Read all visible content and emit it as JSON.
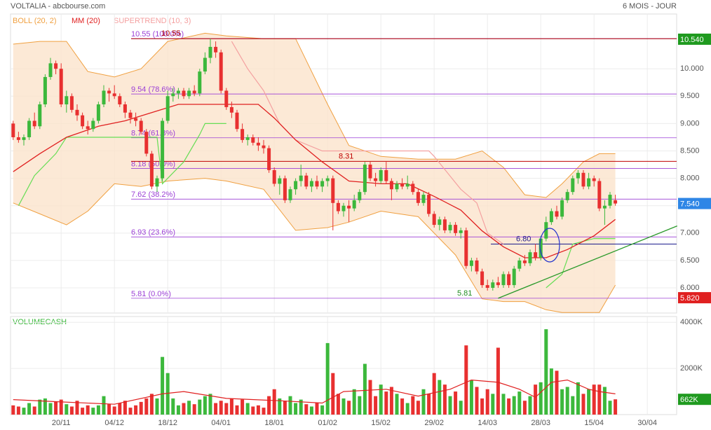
{
  "chart_data": [
    {
      "type": "candlestick",
      "title": "VOLTALIA - abcbourse.com",
      "subtitle": "6 MOIS - JOUR",
      "xlim": [
        -0.5,
        124.5
      ],
      "xticks": [
        {
          "value": 9,
          "label": "20/11"
        },
        {
          "value": 19,
          "label": "04/12"
        },
        {
          "value": 29,
          "label": "18/12"
        },
        {
          "value": 39,
          "label": "04/01"
        },
        {
          "value": 49,
          "label": "18/01"
        },
        {
          "value": 59,
          "label": "01/02"
        },
        {
          "value": 69,
          "label": "15/02"
        },
        {
          "value": 79,
          "label": "29/02"
        },
        {
          "value": 89,
          "label": "14/03"
        },
        {
          "value": 99,
          "label": "28/03"
        },
        {
          "value": 109,
          "label": "15/04"
        },
        {
          "value": 119,
          "label": "30/04"
        }
      ],
      "ylim": [
        5.54,
        11.0
      ],
      "yticks": [
        {
          "value": 6,
          "label": "6.000"
        },
        {
          "value": 6.5,
          "label": "6.500"
        },
        {
          "value": 7,
          "label": "7.000"
        },
        {
          "value": 7.5,
          "label": "7.500"
        },
        {
          "value": 8,
          "label": "8.000"
        },
        {
          "value": 8.5,
          "label": "8.500"
        },
        {
          "value": 9,
          "label": "9.000"
        },
        {
          "value": 9.5,
          "label": "9.500"
        },
        {
          "value": 10,
          "label": "10.000"
        }
      ],
      "grid": true,
      "up_color": "#3cb83c",
      "down_color": "#e83030",
      "candles": [
        [
          9.0,
          9.05,
          8.7,
          8.75
        ],
        [
          8.75,
          8.85,
          8.65,
          8.7
        ],
        [
          8.7,
          8.8,
          8.6,
          8.75
        ],
        [
          8.75,
          9.1,
          8.7,
          9.05
        ],
        [
          9.05,
          9.2,
          8.9,
          8.95
        ],
        [
          8.95,
          9.4,
          8.9,
          9.35
        ],
        [
          9.35,
          9.9,
          9.3,
          9.85
        ],
        [
          9.85,
          10.2,
          9.8,
          10.1
        ],
        [
          10.1,
          10.15,
          9.9,
          10.0
        ],
        [
          10.0,
          10.1,
          9.3,
          9.35
        ],
        [
          9.35,
          9.6,
          9.2,
          9.5
        ],
        [
          9.5,
          9.55,
          9.2,
          9.25
        ],
        [
          9.25,
          9.35,
          9.05,
          9.15
        ],
        [
          9.15,
          9.2,
          8.9,
          8.95
        ],
        [
          8.95,
          9.05,
          8.8,
          8.9
        ],
        [
          8.9,
          9.1,
          8.85,
          9.05
        ],
        [
          9.05,
          9.4,
          9.0,
          9.35
        ],
        [
          9.35,
          9.7,
          9.3,
          9.6
        ],
        [
          9.6,
          9.65,
          9.4,
          9.55
        ],
        [
          9.55,
          9.7,
          9.45,
          9.5
        ],
        [
          9.5,
          9.55,
          9.3,
          9.35
        ],
        [
          9.35,
          9.4,
          9.1,
          9.2
        ],
        [
          9.2,
          9.25,
          9.0,
          9.1
        ],
        [
          9.1,
          9.2,
          8.95,
          9.05
        ],
        [
          9.05,
          9.1,
          8.8,
          8.85
        ],
        [
          8.85,
          8.9,
          8.4,
          8.45
        ],
        [
          8.45,
          8.5,
          7.8,
          7.85
        ],
        [
          7.85,
          8.05,
          7.75,
          8.0
        ],
        [
          8.0,
          9.1,
          7.95,
          9.05
        ],
        [
          9.05,
          9.6,
          9.0,
          9.5
        ],
        [
          9.5,
          9.65,
          9.4,
          9.55
        ],
        [
          9.55,
          9.65,
          9.45,
          9.6
        ],
        [
          9.6,
          9.65,
          9.45,
          9.5
        ],
        [
          9.5,
          9.65,
          9.45,
          9.6
        ],
        [
          9.6,
          9.7,
          9.5,
          9.55
        ],
        [
          9.55,
          10.0,
          9.5,
          9.95
        ],
        [
          9.95,
          10.3,
          9.9,
          10.2
        ],
        [
          10.2,
          10.55,
          10.1,
          10.4
        ],
        [
          10.4,
          10.5,
          10.2,
          10.3
        ],
        [
          10.3,
          10.35,
          9.55,
          9.6
        ],
        [
          9.6,
          9.65,
          9.25,
          9.3
        ],
        [
          9.3,
          9.4,
          9.1,
          9.2
        ],
        [
          9.2,
          9.25,
          8.85,
          8.9
        ],
        [
          8.9,
          9.0,
          8.65,
          8.7
        ],
        [
          8.7,
          8.8,
          8.6,
          8.75
        ],
        [
          8.75,
          8.8,
          8.6,
          8.65
        ],
        [
          8.65,
          8.75,
          8.5,
          8.6
        ],
        [
          8.6,
          8.7,
          8.45,
          8.55
        ],
        [
          8.55,
          8.6,
          8.1,
          8.15
        ],
        [
          8.15,
          8.2,
          7.85,
          7.9
        ],
        [
          7.9,
          8.05,
          7.7,
          8.0
        ],
        [
          8.0,
          8.05,
          7.55,
          7.6
        ],
        [
          7.6,
          7.85,
          7.55,
          7.8
        ],
        [
          7.8,
          8.0,
          7.7,
          7.95
        ],
        [
          7.95,
          8.25,
          7.85,
          8.05
        ],
        [
          8.05,
          8.1,
          7.8,
          7.85
        ],
        [
          7.85,
          8.0,
          7.75,
          7.95
        ],
        [
          7.95,
          8.05,
          7.8,
          7.85
        ],
        [
          7.85,
          8.0,
          7.75,
          7.95
        ],
        [
          7.95,
          8.05,
          7.85,
          8.0
        ],
        [
          8.0,
          8.05,
          7.05,
          7.55
        ],
        [
          7.55,
          7.6,
          7.35,
          7.4
        ],
        [
          7.4,
          7.55,
          7.3,
          7.5
        ],
        [
          7.5,
          7.6,
          7.2,
          7.45
        ],
        [
          7.45,
          7.7,
          7.4,
          7.6
        ],
        [
          7.6,
          7.8,
          7.55,
          7.75
        ],
        [
          7.75,
          8.3,
          7.7,
          8.25
        ],
        [
          8.25,
          8.3,
          7.95,
          8.0
        ],
        [
          8.0,
          8.1,
          7.85,
          7.95
        ],
        [
          7.95,
          8.2,
          7.9,
          8.15
        ],
        [
          8.15,
          8.3,
          7.9,
          7.95
        ],
        [
          7.95,
          8.0,
          7.6,
          7.8
        ],
        [
          7.8,
          7.95,
          7.75,
          7.9
        ],
        [
          7.9,
          8.0,
          7.8,
          7.85
        ],
        [
          7.85,
          8.05,
          7.8,
          7.9
        ],
        [
          7.9,
          7.95,
          7.7,
          7.75
        ],
        [
          7.75,
          7.8,
          7.5,
          7.55
        ],
        [
          7.55,
          7.75,
          7.5,
          7.7
        ],
        [
          7.7,
          7.75,
          7.3,
          7.35
        ],
        [
          7.35,
          7.4,
          7.1,
          7.15
        ],
        [
          7.15,
          7.3,
          7.05,
          7.25
        ],
        [
          7.25,
          7.3,
          7.0,
          7.05
        ],
        [
          7.05,
          7.2,
          7.0,
          7.15
        ],
        [
          7.15,
          7.2,
          6.95,
          7.0
        ],
        [
          7.0,
          7.1,
          6.9,
          7.05
        ],
        [
          7.05,
          7.1,
          6.35,
          6.4
        ],
        [
          6.4,
          6.55,
          6.3,
          6.5
        ],
        [
          6.5,
          6.55,
          6.25,
          6.3
        ],
        [
          6.3,
          6.35,
          6.0,
          6.05
        ],
        [
          6.05,
          6.15,
          5.95,
          6.0
        ],
        [
          6.0,
          6.15,
          5.95,
          6.1
        ],
        [
          6.1,
          6.2,
          6.0,
          6.05
        ],
        [
          6.05,
          6.3,
          6.0,
          6.25
        ],
        [
          6.25,
          6.3,
          6.0,
          6.05
        ],
        [
          6.05,
          6.4,
          6.0,
          6.35
        ],
        [
          6.35,
          6.55,
          6.3,
          6.5
        ],
        [
          6.5,
          6.6,
          6.4,
          6.45
        ],
        [
          6.45,
          6.7,
          6.4,
          6.65
        ],
        [
          6.65,
          6.8,
          6.5,
          6.55
        ],
        [
          6.55,
          6.95,
          6.5,
          6.9
        ],
        [
          6.9,
          7.3,
          6.85,
          7.2
        ],
        [
          7.2,
          7.45,
          7.15,
          7.4
        ],
        [
          7.4,
          7.5,
          7.25,
          7.3
        ],
        [
          7.3,
          7.65,
          7.25,
          7.6
        ],
        [
          7.6,
          7.8,
          7.55,
          7.75
        ],
        [
          7.75,
          8.05,
          7.7,
          8.0
        ],
        [
          8.0,
          8.15,
          7.9,
          8.1
        ],
        [
          8.1,
          8.15,
          7.8,
          7.85
        ],
        [
          7.85,
          8.1,
          7.8,
          8.0
        ],
        [
          8.0,
          8.05,
          7.85,
          7.95
        ],
        [
          7.95,
          8.0,
          7.4,
          7.45
        ],
        [
          7.45,
          7.6,
          7.15,
          7.5
        ],
        [
          7.5,
          7.75,
          7.45,
          7.7
        ],
        [
          7.6,
          7.7,
          7.5,
          7.54
        ]
      ],
      "bollinger": {
        "name": "BOLL (20, 2)",
        "color": "#f0a040",
        "fill": "#fbe3cc",
        "x": [
          0,
          5,
          10,
          14,
          19,
          24,
          29,
          36,
          40,
          47,
          53,
          59,
          63,
          69,
          76,
          83,
          88,
          92,
          96,
          100,
          103,
          107,
          110,
          113
        ],
        "upper": [
          10.45,
          10.5,
          10.5,
          9.95,
          9.85,
          10.0,
          10.5,
          10.65,
          10.6,
          10.55,
          10.55,
          9.35,
          8.6,
          8.4,
          8.35,
          8.35,
          8.5,
          8.2,
          7.7,
          7.65,
          7.9,
          8.3,
          8.45,
          8.45
        ],
        "lower": [
          7.55,
          7.35,
          7.15,
          7.4,
          7.9,
          7.85,
          7.95,
          8.0,
          7.95,
          7.8,
          7.05,
          7.1,
          7.2,
          7.4,
          7.3,
          6.6,
          5.8,
          5.75,
          5.75,
          5.6,
          5.55,
          5.55,
          5.55,
          6.05
        ]
      },
      "moving_average": {
        "name": "MM (20)",
        "color": "#e02020",
        "x": [
          0,
          5,
          10,
          16,
          21,
          26,
          31,
          37,
          42,
          46,
          49,
          53,
          58,
          63,
          69,
          74,
          79,
          84,
          88,
          92,
          96,
          100,
          104,
          109,
          113
        ],
        "values": [
          8.12,
          8.45,
          8.75,
          8.95,
          9.05,
          9.2,
          9.35,
          9.35,
          9.35,
          9.35,
          9.1,
          8.7,
          8.3,
          7.95,
          7.9,
          7.9,
          7.67,
          7.42,
          7.04,
          6.75,
          6.55,
          6.55,
          6.7,
          6.95,
          7.25
        ]
      },
      "supertrend": {
        "name": "SUPERTREND (10, 3)",
        "color": "#f4a0a0",
        "up": {
          "color": "#66dd55",
          "x": [
            1,
            4,
            8,
            10,
            27,
            28,
            32,
            35,
            36,
            40,
            41,
            100,
            103,
            105,
            109,
            113
          ],
          "values": [
            7.5,
            8.05,
            8.45,
            8.75,
            8.75,
            7.9,
            8.3,
            8.8,
            9.0,
            9.0,
            null,
            6.0,
            6.25,
            6.8,
            6.9,
            6.9
          ]
        },
        "down": {
          "color": "#f4a0a0",
          "x": [
            41,
            44,
            47,
            50,
            53,
            58,
            69,
            78,
            79,
            84,
            87,
            89,
            92
          ],
          "values": [
            10.5,
            10.0,
            9.6,
            9.0,
            8.7,
            8.5,
            8.5,
            8.5,
            8.4,
            7.8,
            7.55,
            7.0,
            6.8
          ]
        }
      },
      "fibonacci": {
        "color": "#9b3fd6",
        "levels": [
          {
            "value": 10.55,
            "label": "10.55 (100.0%)"
          },
          {
            "value": 9.54,
            "label": "9.54 (78.6%)"
          },
          {
            "value": 8.74,
            "label": "8.74 (61.8%)"
          },
          {
            "value": 8.18,
            "label": "8.18 (50.0%)"
          },
          {
            "value": 7.62,
            "label": "7.62 (38.2%)"
          },
          {
            "value": 6.93,
            "label": "6.93 (23.6%)"
          },
          {
            "value": 5.81,
            "label": "5.81 (0.0%)"
          }
        ]
      },
      "levels": [
        {
          "value": 10.55,
          "label": "10.55",
          "color": "#b00000"
        },
        {
          "value": 8.31,
          "label": "8.31",
          "color": "#c00000"
        },
        {
          "value": 6.8,
          "label": "6.80",
          "color": "#1a1a8c"
        },
        {
          "value": 5.81,
          "label": "5.81",
          "color": "#228b22"
        }
      ],
      "trendline": {
        "color": "#2a9a2a",
        "points": [
          [
            91,
            5.81
          ],
          [
            124.6,
            7.13
          ]
        ]
      },
      "badges": [
        {
          "value": 10.54,
          "label": "10.540",
          "color": "#1f9a1f"
        },
        {
          "value": 7.54,
          "label": "7.540",
          "color": "#2e86e6"
        },
        {
          "value": 5.82,
          "label": "5.820",
          "color": "#e02020"
        }
      ]
    },
    {
      "type": "bar",
      "title": "VOLUMECASH",
      "title_color": "#3cb83c",
      "ylim": [
        0,
        4250
      ],
      "yticks": [
        {
          "value": 2000,
          "label": "2000K"
        },
        {
          "value": 4000,
          "label": "4000K"
        }
      ],
      "values": [
        400,
        350,
        300,
        500,
        350,
        650,
        700,
        500,
        550,
        650,
        450,
        350,
        600,
        300,
        400,
        300,
        400,
        800,
        450,
        350,
        500,
        600,
        300,
        400,
        550,
        700,
        900,
        700,
        2500,
        1800,
        700,
        400,
        500,
        600,
        450,
        650,
        800,
        900,
        500,
        600,
        500,
        700,
        400,
        650,
        500,
        350,
        400,
        300,
        800,
        1100,
        700,
        600,
        800,
        500,
        650,
        450,
        350,
        500,
        400,
        3100,
        1800,
        900,
        700,
        600,
        1100,
        800,
        2200,
        1500,
        800,
        1300,
        1000,
        1200,
        900,
        700,
        500,
        800,
        600,
        1100,
        900,
        1800,
        1500,
        1300,
        800,
        1000,
        600,
        3000,
        1500,
        1200,
        700,
        1100,
        900,
        2900,
        900,
        700,
        800,
        1000,
        600,
        800,
        1300,
        1400,
        3700,
        2000,
        1900,
        1100,
        1200,
        800,
        1400,
        900,
        1100,
        1300,
        1300,
        1200,
        600,
        662
      ],
      "moving_average": {
        "color": "#e02020",
        "x": [
          0,
          9,
          19,
          28,
          32,
          40,
          50,
          58,
          62,
          70,
          76,
          82,
          86,
          91,
          95,
          98,
          101,
          104,
          108,
          110,
          113
        ],
        "values": [
          650,
          550,
          450,
          900,
          1000,
          700,
          600,
          500,
          1000,
          1100,
          800,
          1100,
          1500,
          1400,
          1100,
          750,
          1400,
          1500,
          1100,
          1000,
          900
        ]
      },
      "badge": {
        "value": 662,
        "label": "662K",
        "color": "#1f9a1f"
      }
    }
  ]
}
